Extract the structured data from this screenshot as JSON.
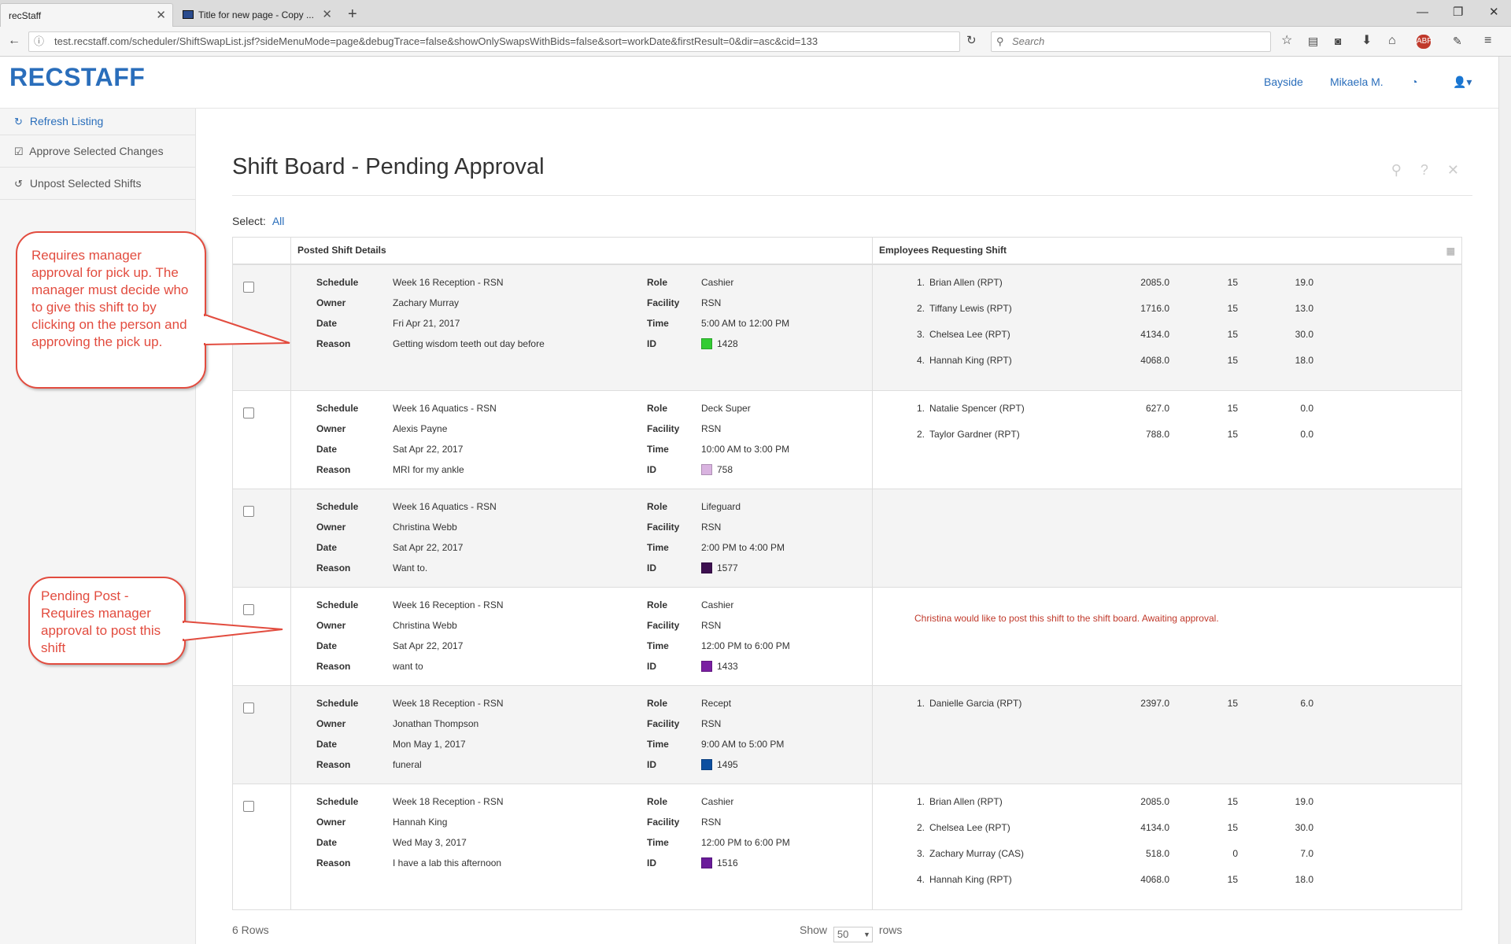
{
  "browser": {
    "tabs": [
      {
        "title": "recStaff",
        "active": true
      },
      {
        "title": "Title for new page - Copy ...",
        "active": false
      }
    ],
    "url": "test.recstaff.com/scheduler/ShiftSwapList.jsf?sideMenuMode=page&debugTrace=false&showOnlySwapsWithBids=false&sort=workDate&firstResult=0&dir=asc&cid=133",
    "search_placeholder": "Search"
  },
  "header": {
    "logo": "RECSTAFF",
    "location": "Bayside",
    "user": "Mikaela M."
  },
  "sidebar": {
    "items": [
      {
        "icon": "refresh-icon",
        "label": "Refresh Listing"
      },
      {
        "icon": "checkbox-icon",
        "label": "Approve Selected Changes"
      },
      {
        "icon": "undo-icon",
        "label": "Unpost Selected Shifts"
      }
    ]
  },
  "page": {
    "title": "Shift Board - Pending Approval",
    "select_label": "Select:",
    "select_all": "All"
  },
  "table": {
    "col_details": "Posted Shift Details",
    "col_requests": "Employees Requesting Shift",
    "labels": {
      "schedule": "Schedule",
      "owner": "Owner",
      "date": "Date",
      "reason": "Reason",
      "role": "Role",
      "facility": "Facility",
      "time": "Time",
      "id": "ID"
    },
    "rows": [
      {
        "schedule": "Week 16 Reception - RSN",
        "owner": "Zachary Murray",
        "date": "Fri Apr 21, 2017",
        "reason": "Getting wisdom teeth out day before",
        "role": "Cashier",
        "facility": "RSN",
        "time": "5:00 AM to 12:00 PM",
        "id": "1428",
        "color": "#33cc33",
        "requests": [
          {
            "n": "1.",
            "name": "Brian Allen (RPT)",
            "a": "2085.0",
            "b": "15",
            "c": "19.0"
          },
          {
            "n": "2.",
            "name": "Tiffany Lewis (RPT)",
            "a": "1716.0",
            "b": "15",
            "c": "13.0"
          },
          {
            "n": "3.",
            "name": "Chelsea Lee (RPT)",
            "a": "4134.0",
            "b": "15",
            "c": "30.0"
          },
          {
            "n": "4.",
            "name": "Hannah King (RPT)",
            "a": "4068.0",
            "b": "15",
            "c": "18.0"
          }
        ]
      },
      {
        "schedule": "Week 16 Aquatics - RSN",
        "owner": "Alexis Payne",
        "date": "Sat Apr 22, 2017",
        "reason": "MRI for my ankle",
        "role": "Deck Super",
        "facility": "RSN",
        "time": "10:00 AM to 3:00 PM",
        "id": "758",
        "color": "#d9b3e0",
        "requests": [
          {
            "n": "1.",
            "name": "Natalie Spencer (RPT)",
            "a": "627.0",
            "b": "15",
            "c": "0.0"
          },
          {
            "n": "2.",
            "name": "Taylor Gardner (RPT)",
            "a": "788.0",
            "b": "15",
            "c": "0.0"
          }
        ]
      },
      {
        "schedule": "Week 16 Aquatics - RSN",
        "owner": "Christina Webb",
        "date": "Sat Apr 22, 2017",
        "reason": "Want to.",
        "role": "Lifeguard",
        "facility": "RSN",
        "time": "2:00 PM to 4:00 PM",
        "id": "1577",
        "color": "#3d1050",
        "requests": []
      },
      {
        "schedule": "Week 16 Reception - RSN",
        "owner": "Christina Webb",
        "date": "Sat Apr 22, 2017",
        "reason": "want to",
        "role": "Cashier",
        "facility": "RSN",
        "time": "12:00 PM to 6:00 PM",
        "id": "1433",
        "color": "#7a1fa2",
        "requests": [],
        "notice": "Christina would like to post this shift to the shift board. Awaiting approval."
      },
      {
        "schedule": "Week 18 Reception - RSN",
        "owner": "Jonathan Thompson",
        "date": "Mon May 1, 2017",
        "reason": "funeral",
        "role": "Recept",
        "facility": "RSN",
        "time": "9:00 AM to 5:00 PM",
        "id": "1495",
        "color": "#0d4fa0",
        "requests": [
          {
            "n": "1.",
            "name": "Danielle Garcia (RPT)",
            "a": "2397.0",
            "b": "15",
            "c": "6.0"
          }
        ]
      },
      {
        "schedule": "Week 18 Reception - RSN",
        "owner": "Hannah King",
        "date": "Wed May 3, 2017",
        "reason": "I have a lab this afternoon",
        "role": "Cashier",
        "facility": "RSN",
        "time": "12:00 PM to 6:00 PM",
        "id": "1516",
        "color": "#6a1b9a",
        "requests": [
          {
            "n": "1.",
            "name": "Brian Allen (RPT)",
            "a": "2085.0",
            "b": "15",
            "c": "19.0"
          },
          {
            "n": "2.",
            "name": "Chelsea Lee (RPT)",
            "a": "4134.0",
            "b": "15",
            "c": "30.0"
          },
          {
            "n": "3.",
            "name": "Zachary Murray (CAS)",
            "a": "518.0",
            "b": "0",
            "c": "7.0"
          },
          {
            "n": "4.",
            "name": "Hannah King (RPT)",
            "a": "4068.0",
            "b": "15",
            "c": "18.0"
          }
        ]
      }
    ]
  },
  "footer": {
    "count": "6 Rows",
    "show": "Show",
    "page_size": "50",
    "rows": "rows"
  },
  "callouts": [
    {
      "text": "Requires manager approval for pick up. The manager must decide who to give this shift to by clicking on the person and approving the pick up."
    },
    {
      "text": "Pending Post - Requires manager approval to post this shift"
    }
  ]
}
